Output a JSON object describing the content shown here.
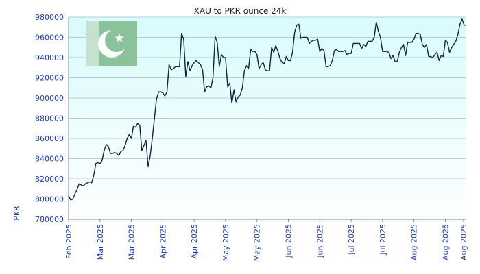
{
  "chart_data": {
    "type": "line",
    "title": "XAU to PKR ounce 24k",
    "xlabel": "",
    "ylabel": "PKR",
    "ylim": [
      780000,
      980000
    ],
    "yticks": [
      780000,
      800000,
      820000,
      840000,
      860000,
      880000,
      900000,
      920000,
      940000,
      960000,
      980000
    ],
    "xlim": [
      "2025-02-01",
      "2025-08-10"
    ],
    "xtick_labels": [
      "Feb 2025",
      "Mar 2025",
      "Mar 2025",
      "Apr 2025",
      "Apr 2025",
      "May 2025",
      "May 2025",
      "Jun 2025",
      "Jun 2025",
      "Jul 2025",
      "Jul 2025",
      "Aug 2025",
      "Aug 2025",
      "Aug 2025"
    ],
    "xtick_dates": [
      "2025-02-01",
      "2025-02-16",
      "2025-03-03",
      "2025-03-18",
      "2025-04-02",
      "2025-04-17",
      "2025-05-02",
      "2025-05-17",
      "2025-06-01",
      "2025-06-16",
      "2025-07-01",
      "2025-07-16",
      "2025-07-31",
      "2025-08-15"
    ],
    "grid": true,
    "line_color": "#0d2340",
    "background_top": "#d8fbfb",
    "background_bottom": "#ffffff",
    "flag": "pakistan-flag",
    "series": [
      {
        "x": [
          "2025-02-01",
          "2025-02-02",
          "2025-02-03",
          "2025-02-04",
          "2025-02-05",
          "2025-02-06",
          "2025-02-07",
          "2025-02-08",
          "2025-02-09",
          "2025-02-10",
          "2025-02-11",
          "2025-02-12",
          "2025-02-13",
          "2025-02-14",
          "2025-02-15",
          "2025-02-16",
          "2025-02-17",
          "2025-02-18",
          "2025-02-19",
          "2025-02-20",
          "2025-02-21",
          "2025-02-22",
          "2025-02-23",
          "2025-02-24",
          "2025-02-25",
          "2025-02-26",
          "2025-02-27",
          "2025-02-28",
          "2025-03-01",
          "2025-03-02",
          "2025-03-03",
          "2025-03-04",
          "2025-03-05",
          "2025-03-06",
          "2025-03-07",
          "2025-03-08",
          "2025-03-09",
          "2025-03-10",
          "2025-03-11",
          "2025-03-12",
          "2025-03-13",
          "2025-03-14",
          "2025-03-15",
          "2025-03-16",
          "2025-03-17",
          "2025-03-18",
          "2025-03-19",
          "2025-03-20",
          "2025-03-21",
          "2025-03-22",
          "2025-03-23",
          "2025-03-24",
          "2025-03-25",
          "2025-03-26",
          "2025-03-27",
          "2025-03-28",
          "2025-03-29",
          "2025-03-30",
          "2025-03-31",
          "2025-04-01",
          "2025-04-02",
          "2025-04-03",
          "2025-04-04",
          "2025-04-05",
          "2025-04-06",
          "2025-04-07",
          "2025-04-08",
          "2025-04-09",
          "2025-04-10",
          "2025-04-11",
          "2025-04-12",
          "2025-04-13",
          "2025-04-14",
          "2025-04-15",
          "2025-04-16",
          "2025-04-17",
          "2025-04-18",
          "2025-04-19",
          "2025-04-20",
          "2025-04-21",
          "2025-04-22",
          "2025-04-23",
          "2025-04-24",
          "2025-04-25",
          "2025-04-26",
          "2025-04-27",
          "2025-04-28",
          "2025-04-29",
          "2025-04-30",
          "2025-05-01",
          "2025-05-02",
          "2025-05-03",
          "2025-05-04",
          "2025-05-05",
          "2025-05-06",
          "2025-05-07",
          "2025-05-08",
          "2025-05-09",
          "2025-05-10",
          "2025-05-11",
          "2025-05-12",
          "2025-05-13",
          "2025-05-14",
          "2025-05-15",
          "2025-05-16",
          "2025-05-17",
          "2025-05-18",
          "2025-05-19",
          "2025-05-20",
          "2025-05-21",
          "2025-05-22",
          "2025-05-23",
          "2025-05-24",
          "2025-05-25",
          "2025-05-26",
          "2025-05-27",
          "2025-05-28",
          "2025-05-29",
          "2025-05-30",
          "2025-05-31",
          "2025-06-01",
          "2025-06-02",
          "2025-06-03",
          "2025-06-04",
          "2025-06-05",
          "2025-06-06",
          "2025-06-07",
          "2025-06-08",
          "2025-06-09",
          "2025-06-10",
          "2025-06-11",
          "2025-06-12",
          "2025-06-13",
          "2025-06-14",
          "2025-06-15",
          "2025-06-16",
          "2025-06-17",
          "2025-06-18",
          "2025-06-19",
          "2025-06-20",
          "2025-06-21",
          "2025-06-22",
          "2025-06-23",
          "2025-06-24",
          "2025-06-25",
          "2025-06-26",
          "2025-06-27",
          "2025-06-28",
          "2025-06-29",
          "2025-06-30",
          "2025-07-01",
          "2025-07-02",
          "2025-07-03",
          "2025-07-04",
          "2025-07-05",
          "2025-07-06",
          "2025-07-07",
          "2025-07-08",
          "2025-07-09",
          "2025-07-10",
          "2025-07-11",
          "2025-07-12",
          "2025-07-13",
          "2025-07-14",
          "2025-07-15",
          "2025-07-16",
          "2025-07-17",
          "2025-07-18",
          "2025-07-19",
          "2025-07-20",
          "2025-07-21",
          "2025-07-22",
          "2025-07-23",
          "2025-07-24",
          "2025-07-25",
          "2025-07-26",
          "2025-07-27",
          "2025-07-28",
          "2025-07-29",
          "2025-07-30",
          "2025-07-31",
          "2025-08-01",
          "2025-08-02",
          "2025-08-03",
          "2025-08-04",
          "2025-08-05",
          "2025-08-06",
          "2025-08-07",
          "2025-08-08",
          "2025-08-09",
          "2025-08-10"
        ],
        "y": [
          803000,
          799000,
          800000,
          805000,
          809000,
          815000,
          814000,
          813000,
          815000,
          816000,
          817000,
          816000,
          823000,
          835000,
          836000,
          835000,
          838000,
          848000,
          854000,
          852000,
          845000,
          845000,
          846000,
          845000,
          843000,
          847000,
          848000,
          853000,
          860000,
          864000,
          860000,
          872000,
          871000,
          875000,
          873000,
          848000,
          853000,
          858000,
          832000,
          843000,
          860000,
          880000,
          899000,
          906000,
          906000,
          905000,
          902000,
          906000,
          933000,
          928000,
          929000,
          931000,
          931000,
          931000,
          964000,
          958000,
          921000,
          936000,
          927000,
          932000,
          935000,
          937000,
          935000,
          933000,
          928000,
          906000,
          911000,
          912000,
          910000,
          920000,
          961000,
          955000,
          931000,
          943000,
          940000,
          940000,
          911000,
          915000,
          895000,
          908000,
          896000,
          901000,
          903000,
          910000,
          927000,
          932000,
          929000,
          948000,
          946000,
          946000,
          943000,
          929000,
          933000,
          935000,
          928000,
          927000,
          927000,
          950000,
          945000,
          952000,
          946000,
          939000,
          935000,
          934000,
          941000,
          937000,
          937000,
          945000,
          965000,
          972000,
          973000,
          959000,
          960000,
          960000,
          960000,
          954000,
          956000,
          957000,
          957000,
          958000,
          946000,
          949000,
          947000,
          931000,
          931000,
          932000,
          937000,
          947000,
          948000,
          946000,
          946000,
          946000,
          947000,
          943000,
          944000,
          944000,
          954000,
          954000,
          954000,
          954000,
          949000,
          953000,
          951000,
          956000,
          956000,
          956000,
          960000,
          975000,
          966000,
          960000,
          946000,
          946000,
          946000,
          945000,
          939000,
          942000,
          936000,
          936000,
          945000,
          950000,
          953000,
          942000,
          955000,
          955000,
          955000,
          958000,
          964000,
          964000,
          963000,
          953000,
          950000,
          953000,
          941000,
          941000,
          940000,
          943000,
          945000,
          937000,
          942000,
          941000,
          957000,
          955000,
          945000,
          950000,
          953000,
          956000,
          963000,
          973000,
          978000,
          972000,
          972000
        ],
        "name": ""
      }
    ]
  }
}
